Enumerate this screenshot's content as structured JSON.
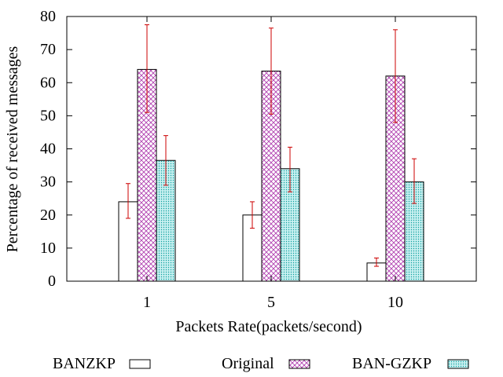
{
  "chart_data": {
    "type": "bar",
    "title": "",
    "xlabel": "Packets Rate(packets/second)",
    "ylabel": "Percentage of received messages",
    "categories": [
      "1",
      "5",
      "10"
    ],
    "ylim": [
      0,
      80
    ],
    "yticks": [
      0,
      10,
      20,
      30,
      40,
      50,
      60,
      70,
      80
    ],
    "grid": false,
    "legend_position": "bottom",
    "series": [
      {
        "name": "BANZKP",
        "pattern": "none",
        "values": [
          24,
          20,
          5.5
        ],
        "error_low": [
          19,
          16,
          4.5
        ],
        "error_high": [
          29.5,
          24,
          7
        ]
      },
      {
        "name": "Original",
        "pattern": "crosshatch",
        "values": [
          64,
          63.5,
          62
        ],
        "error_low": [
          51,
          50.5,
          48
        ],
        "error_high": [
          77.5,
          76.5,
          76
        ]
      },
      {
        "name": "BAN-GZKP",
        "pattern": "dots",
        "values": [
          36.5,
          34,
          30
        ],
        "error_low": [
          29,
          27,
          23.5
        ],
        "error_high": [
          44,
          40.5,
          37
        ]
      }
    ]
  },
  "colors": {
    "axis": "#000000",
    "error_bar": "#cc0000",
    "original_pattern": "#b040b0",
    "bangzkp_pattern": "#10a0a0",
    "bangzkp_fill": "#c8f0f0"
  }
}
